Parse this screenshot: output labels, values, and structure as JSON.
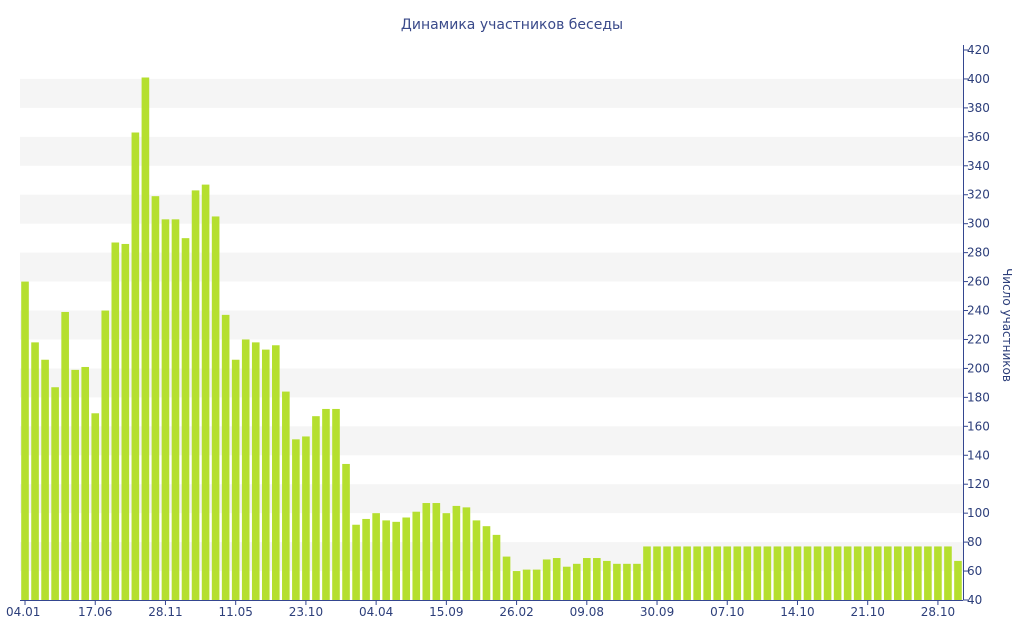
{
  "colors": {
    "bar": "#b5df2f",
    "band": "#f5f5f5",
    "axis": "#34468f",
    "text": "#2c3e7a"
  },
  "chart_data": {
    "type": "bar",
    "title": "Динамика участников беседы",
    "ylabel": "Число участников",
    "xlabel": "",
    "ylim": [
      40,
      420
    ],
    "yticks": [
      40,
      60,
      80,
      100,
      120,
      140,
      160,
      180,
      200,
      220,
      240,
      260,
      280,
      300,
      320,
      340,
      360,
      380,
      400,
      420
    ],
    "y_axis_side": "right",
    "grid": "alternating horizontal bands",
    "x_tick_labels": [
      {
        "index": 0,
        "label": "04.01"
      },
      {
        "index": 7,
        "label": "17.06"
      },
      {
        "index": 14,
        "label": "28.11"
      },
      {
        "index": 21,
        "label": "11.05"
      },
      {
        "index": 28,
        "label": "23.10"
      },
      {
        "index": 35,
        "label": "04.04"
      },
      {
        "index": 42,
        "label": "15.09"
      },
      {
        "index": 49,
        "label": "26.02"
      },
      {
        "index": 56,
        "label": "09.08"
      },
      {
        "index": 63,
        "label": "30.09"
      },
      {
        "index": 70,
        "label": "07.10"
      },
      {
        "index": 77,
        "label": "14.10"
      },
      {
        "index": 84,
        "label": "21.10"
      },
      {
        "index": 91,
        "label": "28.10"
      }
    ],
    "series": [
      {
        "values": [
          260,
          218,
          206,
          187,
          239,
          199,
          201,
          169,
          240,
          287,
          286,
          363,
          401,
          319,
          303,
          303,
          290,
          323,
          327,
          305,
          237,
          206,
          220,
          218,
          213,
          216,
          184,
          151,
          153,
          167,
          172,
          172,
          134,
          92,
          96,
          100,
          95,
          94,
          97,
          101,
          107,
          107,
          100,
          105,
          104,
          95,
          91,
          85,
          70,
          60,
          61,
          61,
          68,
          69,
          63,
          65,
          69,
          69,
          67,
          65,
          65,
          65,
          77,
          77,
          77,
          77,
          77,
          77,
          77,
          77,
          77,
          77,
          77,
          77,
          77,
          77,
          77,
          77,
          77,
          77,
          77,
          77,
          77,
          77,
          77,
          77,
          77,
          77,
          77,
          77,
          77,
          77,
          77,
          67
        ]
      }
    ]
  }
}
